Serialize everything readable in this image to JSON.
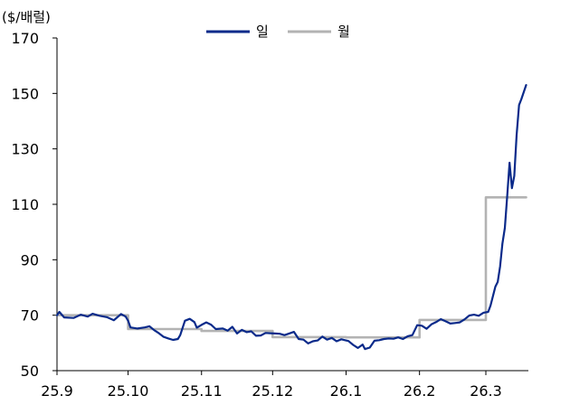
{
  "chart_data": {
    "type": "line",
    "unit_label": "($/배럴)",
    "y_ticks": [
      50,
      70,
      90,
      110,
      130,
      150,
      170
    ],
    "ylim": [
      50,
      170
    ],
    "x_ticks": [
      "25.9",
      "25.10",
      "25.11",
      "25.12",
      "26.1",
      "26.2",
      "26.3"
    ],
    "legend_position": "top-center",
    "grid": false,
    "colors": {
      "daily": "#0a2a8a",
      "monthly": "#b3b3b3",
      "axis": "#000000"
    },
    "series": [
      {
        "name": "일",
        "key": "daily",
        "points": [
          [
            "2025-09-01",
            70.0
          ],
          [
            "2025-09-02",
            71.2
          ],
          [
            "2025-09-04",
            69.2
          ],
          [
            "2025-09-08",
            69.0
          ],
          [
            "2025-09-11",
            70.2
          ],
          [
            "2025-09-14",
            69.5
          ],
          [
            "2025-09-16",
            70.5
          ],
          [
            "2025-09-19",
            69.8
          ],
          [
            "2025-09-22",
            69.3
          ],
          [
            "2025-09-25",
            68.2
          ],
          [
            "2025-09-28",
            70.4
          ],
          [
            "2025-09-30",
            69.5
          ],
          [
            "2025-10-01",
            68.0
          ],
          [
            "2025-10-02",
            65.6
          ],
          [
            "2025-10-05",
            65.2
          ],
          [
            "2025-10-08",
            65.6
          ],
          [
            "2025-10-10",
            66.0
          ],
          [
            "2025-10-12",
            64.6
          ],
          [
            "2025-10-14",
            63.5
          ],
          [
            "2025-10-16",
            62.2
          ],
          [
            "2025-10-18",
            61.6
          ],
          [
            "2025-10-20",
            61.1
          ],
          [
            "2025-10-22",
            61.4
          ],
          [
            "2025-10-23",
            62.8
          ],
          [
            "2025-10-25",
            68.0
          ],
          [
            "2025-10-27",
            68.7
          ],
          [
            "2025-10-29",
            67.5
          ],
          [
            "2025-10-30",
            65.5
          ],
          [
            "2025-11-01",
            66.5
          ],
          [
            "2025-11-03",
            67.4
          ],
          [
            "2025-11-05",
            66.6
          ],
          [
            "2025-11-07",
            65.0
          ],
          [
            "2025-11-10",
            65.2
          ],
          [
            "2025-11-12",
            64.4
          ],
          [
            "2025-11-14",
            65.8
          ],
          [
            "2025-11-16",
            63.4
          ],
          [
            "2025-11-18",
            64.7
          ],
          [
            "2025-11-20",
            63.9
          ],
          [
            "2025-11-22",
            64.2
          ],
          [
            "2025-11-24",
            62.6
          ],
          [
            "2025-11-26",
            62.7
          ],
          [
            "2025-11-28",
            63.6
          ],
          [
            "2025-11-30",
            63.5
          ],
          [
            "2025-12-02",
            63.4
          ],
          [
            "2025-12-04",
            63.3
          ],
          [
            "2025-12-06",
            62.8
          ],
          [
            "2025-12-08",
            63.4
          ],
          [
            "2025-12-10",
            64.0
          ],
          [
            "2025-12-12",
            61.4
          ],
          [
            "2025-12-14",
            61.2
          ],
          [
            "2025-12-16",
            59.8
          ],
          [
            "2025-12-18",
            60.6
          ],
          [
            "2025-12-20",
            60.9
          ],
          [
            "2025-12-22",
            62.3
          ],
          [
            "2025-12-24",
            61.2
          ],
          [
            "2025-12-26",
            61.8
          ],
          [
            "2025-12-28",
            60.6
          ],
          [
            "2025-12-30",
            61.3
          ],
          [
            "2026-01-02",
            60.7
          ],
          [
            "2026-01-04",
            59.3
          ],
          [
            "2026-01-06",
            58.2
          ],
          [
            "2026-01-08",
            59.4
          ],
          [
            "2026-01-09",
            57.8
          ],
          [
            "2026-01-11",
            58.3
          ],
          [
            "2026-01-13",
            60.8
          ],
          [
            "2026-01-15",
            61.0
          ],
          [
            "2026-01-17",
            61.4
          ],
          [
            "2026-01-19",
            61.6
          ],
          [
            "2026-01-21",
            61.5
          ],
          [
            "2026-01-23",
            62.0
          ],
          [
            "2026-01-25",
            61.4
          ],
          [
            "2026-01-27",
            62.4
          ],
          [
            "2026-01-29",
            62.8
          ],
          [
            "2026-01-31",
            66.4
          ],
          [
            "2026-02-02",
            66.2
          ],
          [
            "2026-02-04",
            65.1
          ],
          [
            "2026-02-06",
            66.7
          ],
          [
            "2026-02-08",
            67.5
          ],
          [
            "2026-02-10",
            68.6
          ],
          [
            "2026-02-12",
            67.8
          ],
          [
            "2026-02-14",
            67.0
          ],
          [
            "2026-02-16",
            67.2
          ],
          [
            "2026-02-18",
            67.4
          ],
          [
            "2026-02-20",
            68.5
          ],
          [
            "2026-02-22",
            69.9
          ],
          [
            "2026-02-24",
            70.2
          ],
          [
            "2026-02-26",
            69.8
          ],
          [
            "2026-02-28",
            70.9
          ],
          [
            "2026-03-02",
            71.2
          ],
          [
            "2026-03-03",
            73.5
          ],
          [
            "2026-03-05",
            80.3
          ],
          [
            "2026-03-06",
            82.0
          ],
          [
            "2026-03-07",
            87.5
          ],
          [
            "2026-03-08",
            95.8
          ],
          [
            "2026-03-09",
            101.5
          ],
          [
            "2026-03-10",
            113.0
          ],
          [
            "2026-03-11",
            125.0
          ],
          [
            "2026-03-12",
            115.8
          ],
          [
            "2026-03-13",
            120.2
          ],
          [
            "2026-03-14",
            135.0
          ],
          [
            "2026-03-15",
            145.8
          ],
          [
            "2026-03-16",
            148.0
          ],
          [
            "2026-03-18",
            153.0
          ]
        ]
      },
      {
        "name": "월",
        "key": "monthly",
        "points": [
          [
            "2025-09-01",
            70.0
          ],
          [
            "2025-10-01",
            70.0
          ],
          [
            "2025-10-01",
            65.0
          ],
          [
            "2025-11-01",
            65.0
          ],
          [
            "2025-11-01",
            64.3
          ],
          [
            "2025-12-01",
            64.3
          ],
          [
            "2025-12-01",
            62.1
          ],
          [
            "2026-01-01",
            62.1
          ],
          [
            "2026-01-01",
            62.0
          ],
          [
            "2026-02-01",
            62.0
          ],
          [
            "2026-02-01",
            68.3
          ],
          [
            "2026-03-01",
            68.3
          ],
          [
            "2026-03-01",
            112.5
          ],
          [
            "2026-03-18",
            112.5
          ]
        ]
      }
    ]
  }
}
